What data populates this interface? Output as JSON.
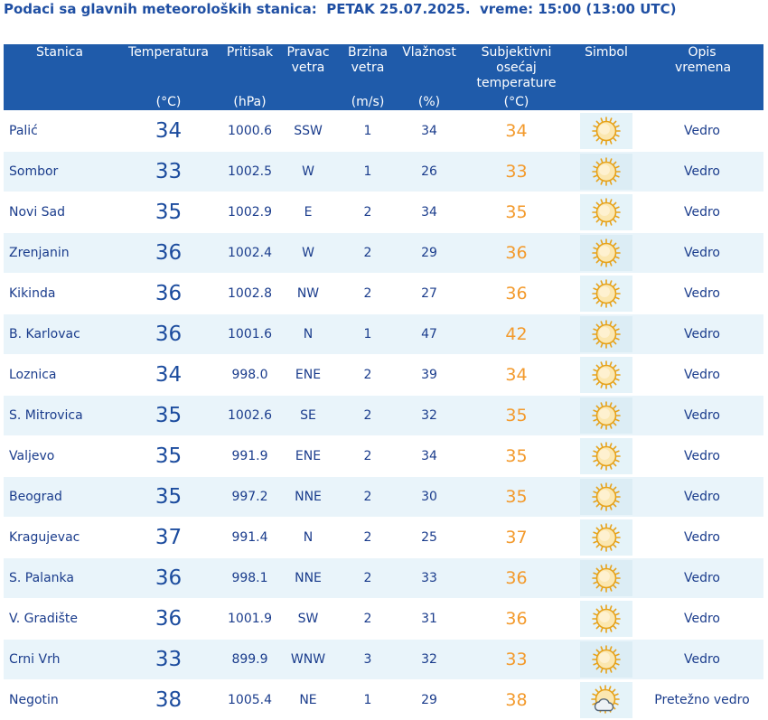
{
  "header": {
    "title": "Podaci sa glavnih meteoroloških stanica:  PETAK 25.07.2025.  vreme: 15:00 (13:00 UTC)"
  },
  "columns": [
    {
      "label": "Stanica",
      "unit": ""
    },
    {
      "label": "Temperatura",
      "unit": "(°C)"
    },
    {
      "label": "Pritisak",
      "unit": "(hPa)"
    },
    {
      "label": "Pravac vetra",
      "unit": ""
    },
    {
      "label": "Brzina vetra",
      "unit": "(m/s)"
    },
    {
      "label": "Vlažnost",
      "unit": "(%)"
    },
    {
      "label": "Subjektivni osećaj temperature",
      "unit": "(°C)"
    },
    {
      "label": "Simbol",
      "unit": ""
    },
    {
      "label": "Opis vremena",
      "unit": ""
    }
  ],
  "rows": [
    {
      "station": "Palić",
      "temp": "34",
      "pressure": "1000.6",
      "wind_dir": "SSW",
      "wind_speed": "1",
      "humidity": "34",
      "feels": "34",
      "icon": "sun-icon",
      "desc": "Vedro"
    },
    {
      "station": "Sombor",
      "temp": "33",
      "pressure": "1002.5",
      "wind_dir": "W",
      "wind_speed": "1",
      "humidity": "26",
      "feels": "33",
      "icon": "sun-icon",
      "desc": "Vedro"
    },
    {
      "station": "Novi Sad",
      "temp": "35",
      "pressure": "1002.9",
      "wind_dir": "E",
      "wind_speed": "2",
      "humidity": "34",
      "feels": "35",
      "icon": "sun-icon",
      "desc": "Vedro"
    },
    {
      "station": "Zrenjanin",
      "temp": "36",
      "pressure": "1002.4",
      "wind_dir": "W",
      "wind_speed": "2",
      "humidity": "29",
      "feels": "36",
      "icon": "sun-icon",
      "desc": "Vedro"
    },
    {
      "station": "Kikinda",
      "temp": "36",
      "pressure": "1002.8",
      "wind_dir": "NW",
      "wind_speed": "2",
      "humidity": "27",
      "feels": "36",
      "icon": "sun-icon",
      "desc": "Vedro"
    },
    {
      "station": "B. Karlovac",
      "temp": "36",
      "pressure": "1001.6",
      "wind_dir": "N",
      "wind_speed": "1",
      "humidity": "47",
      "feels": "42",
      "icon": "sun-icon",
      "desc": "Vedro"
    },
    {
      "station": "Loznica",
      "temp": "34",
      "pressure": "998.0",
      "wind_dir": "ENE",
      "wind_speed": "2",
      "humidity": "39",
      "feels": "34",
      "icon": "sun-icon",
      "desc": "Vedro"
    },
    {
      "station": "S. Mitrovica",
      "temp": "35",
      "pressure": "1002.6",
      "wind_dir": "SE",
      "wind_speed": "2",
      "humidity": "32",
      "feels": "35",
      "icon": "sun-icon",
      "desc": "Vedro"
    },
    {
      "station": "Valjevo",
      "temp": "35",
      "pressure": "991.9",
      "wind_dir": "ENE",
      "wind_speed": "2",
      "humidity": "34",
      "feels": "35",
      "icon": "sun-icon",
      "desc": "Vedro"
    },
    {
      "station": "Beograd",
      "temp": "35",
      "pressure": "997.2",
      "wind_dir": "NNE",
      "wind_speed": "2",
      "humidity": "30",
      "feels": "35",
      "icon": "sun-icon",
      "desc": "Vedro"
    },
    {
      "station": "Kragujevac",
      "temp": "37",
      "pressure": "991.4",
      "wind_dir": "N",
      "wind_speed": "2",
      "humidity": "25",
      "feels": "37",
      "icon": "sun-icon",
      "desc": "Vedro"
    },
    {
      "station": "S. Palanka",
      "temp": "36",
      "pressure": "998.1",
      "wind_dir": "NNE",
      "wind_speed": "2",
      "humidity": "33",
      "feels": "36",
      "icon": "sun-icon",
      "desc": "Vedro"
    },
    {
      "station": "V. Gradište",
      "temp": "36",
      "pressure": "1001.9",
      "wind_dir": "SW",
      "wind_speed": "2",
      "humidity": "31",
      "feels": "36",
      "icon": "sun-icon",
      "desc": "Vedro"
    },
    {
      "station": "Crni Vrh",
      "temp": "33",
      "pressure": "899.9",
      "wind_dir": "WNW",
      "wind_speed": "3",
      "humidity": "32",
      "feels": "33",
      "icon": "sun-icon",
      "desc": "Vedro"
    },
    {
      "station": "Negotin",
      "temp": "38",
      "pressure": "1005.4",
      "wind_dir": "NE",
      "wind_speed": "1",
      "humidity": "29",
      "feels": "38",
      "icon": "sun-cloud-icon",
      "desc": "Pretežno vedro"
    }
  ],
  "colors": {
    "header_bg": "#1f5baa",
    "title_text": "#1f4fa3",
    "text": "#1a3c8c",
    "feels_text": "#f39a2c",
    "row_alt_bg": "#e9f4fa"
  }
}
